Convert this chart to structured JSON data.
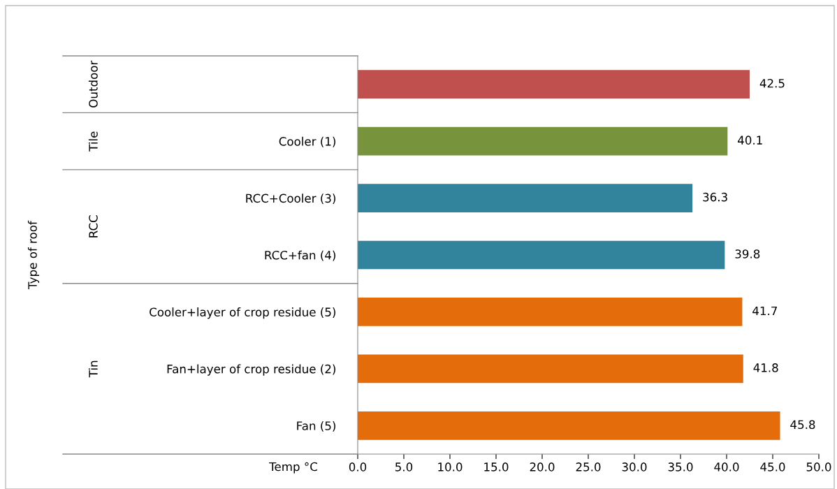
{
  "chart_data": {
    "type": "bar",
    "orientation": "horizontal",
    "xlabel": "Temp °C",
    "categories": [
      null,
      "Cooler (1)",
      "RCC+Cooler (3)",
      "RCC+fan (4)",
      "Cooler+layer of crop residue (5)",
      "Fan+layer of crop residue (2)",
      "Fan (5)"
    ],
    "values": [
      42.5,
      40.1,
      36.3,
      39.8,
      41.7,
      41.8,
      45.8
    ],
    "colors": [
      "#c0504d",
      "#77933c",
      "#31849b",
      "#31849b",
      "#e46c0a",
      "#e46c0a",
      "#e46c0a"
    ],
    "xlim": [
      0,
      50
    ],
    "xticks": [
      {
        "value": 0,
        "label": "0.0"
      },
      {
        "value": 5,
        "label": "5.0"
      },
      {
        "value": 10,
        "label": "10.0"
      },
      {
        "value": 15,
        "label": "15.0"
      },
      {
        "value": 20,
        "label": "20.0"
      },
      {
        "value": 25,
        "label": "25.0"
      },
      {
        "value": 30,
        "label": "30.0"
      },
      {
        "value": 35,
        "label": "35.0"
      },
      {
        "value": 40,
        "label": "40.0"
      },
      {
        "value": 45,
        "label": "45.0"
      },
      {
        "value": 50,
        "label": "50.0"
      }
    ],
    "data_labels": true,
    "annotations": [
      "Outdoor",
      "Tile",
      "RCC",
      "Tin",
      "Type of roof"
    ]
  }
}
